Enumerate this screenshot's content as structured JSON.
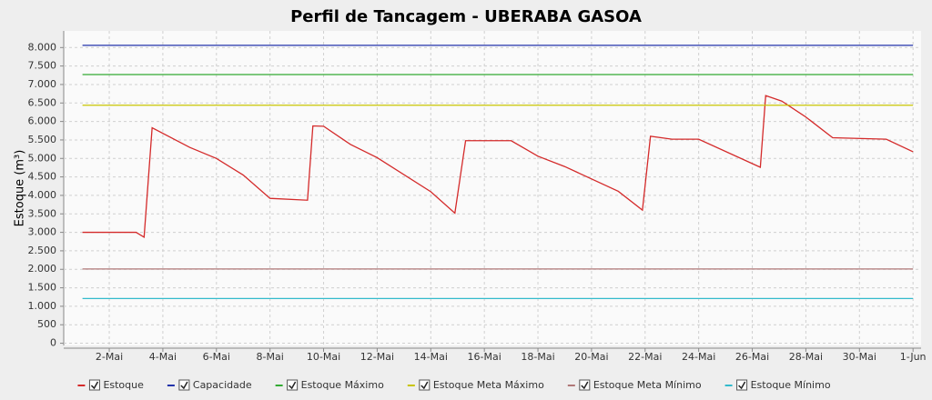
{
  "chart_data": {
    "type": "line",
    "title": "Perfil de Tancagem - UBERABA GASOA",
    "y_label": "Estoque (m³)",
    "xlim": [
      0.3,
      32.3
    ],
    "ylim": [
      -60,
      8450
    ],
    "grid": true,
    "legend": "bottom",
    "xticks": [
      {
        "value": 2,
        "label": "2-Mai"
      },
      {
        "value": 4,
        "label": "4-Mai"
      },
      {
        "value": 6,
        "label": "6-Mai"
      },
      {
        "value": 8,
        "label": "8-Mai"
      },
      {
        "value": 10,
        "label": "10-Mai"
      },
      {
        "value": 12,
        "label": "12-Mai"
      },
      {
        "value": 14,
        "label": "14-Mai"
      },
      {
        "value": 16,
        "label": "16-Mai"
      },
      {
        "value": 18,
        "label": "18-Mai"
      },
      {
        "value": 20,
        "label": "20-Mai"
      },
      {
        "value": 22,
        "label": "22-Mai"
      },
      {
        "value": 24,
        "label": "24-Mai"
      },
      {
        "value": 26,
        "label": "26-Mai"
      },
      {
        "value": 28,
        "label": "28-Mai"
      },
      {
        "value": 30,
        "label": "30-Mai"
      },
      {
        "value": 32,
        "label": "1-Jun"
      }
    ],
    "yticks": [
      0,
      500,
      {
        "value": 1000,
        "label": "1.000"
      },
      {
        "value": 1500,
        "label": "1.500"
      },
      {
        "value": 2000,
        "label": "2.000"
      },
      {
        "value": 2500,
        "label": "2.500"
      },
      {
        "value": 3000,
        "label": "3.000"
      },
      {
        "value": 3500,
        "label": "3.500"
      },
      {
        "value": 4000,
        "label": "4.000"
      },
      {
        "value": 4500,
        "label": "4.500"
      },
      {
        "value": 5000,
        "label": "5.000"
      },
      {
        "value": 5500,
        "label": "5.500"
      },
      {
        "value": 6000,
        "label": "6.000"
      },
      {
        "value": 6500,
        "label": "6.500"
      },
      {
        "value": 7000,
        "label": "7.000"
      },
      {
        "value": 7500,
        "label": "7.500"
      },
      {
        "value": 8000,
        "label": "8.000"
      }
    ],
    "series": [
      {
        "name": "Estoque",
        "color": "#d42a2a",
        "x": [
          1,
          3,
          3.3,
          3.6,
          5,
          6,
          7,
          8,
          9.4,
          9.6,
          10,
          11,
          12,
          14,
          14.9,
          15.3,
          17,
          18,
          19,
          21,
          21.9,
          22.2,
          23,
          24,
          26.3,
          26.5,
          27.1,
          28,
          29,
          31,
          32
        ],
        "values": [
          3000,
          3000,
          2870,
          5830,
          5300,
          5000,
          4550,
          3920,
          3870,
          5880,
          5870,
          5380,
          5020,
          4100,
          3520,
          5480,
          5480,
          5060,
          4780,
          4110,
          3600,
          5600,
          5520,
          5520,
          4760,
          6700,
          6550,
          6120,
          5560,
          5520,
          5180
        ]
      },
      {
        "name": "Capacidade",
        "color": "#2233aa",
        "x": [
          1,
          32
        ],
        "values": [
          8060,
          8060
        ]
      },
      {
        "name": "Estoque Máximo",
        "color": "#33aa33",
        "x": [
          1,
          32
        ],
        "values": [
          7270,
          7270
        ]
      },
      {
        "name": "Estoque Meta Máximo",
        "color": "#c8c400",
        "x": [
          1,
          32
        ],
        "values": [
          6440,
          6440
        ]
      },
      {
        "name": "Estoque Meta Mínimo",
        "color": "#b07878",
        "x": [
          1,
          32
        ],
        "values": [
          2010,
          2010
        ]
      },
      {
        "name": "Estoque Mínimo",
        "color": "#33bbcc",
        "x": [
          1,
          32
        ],
        "values": [
          1210,
          1210
        ]
      }
    ]
  }
}
